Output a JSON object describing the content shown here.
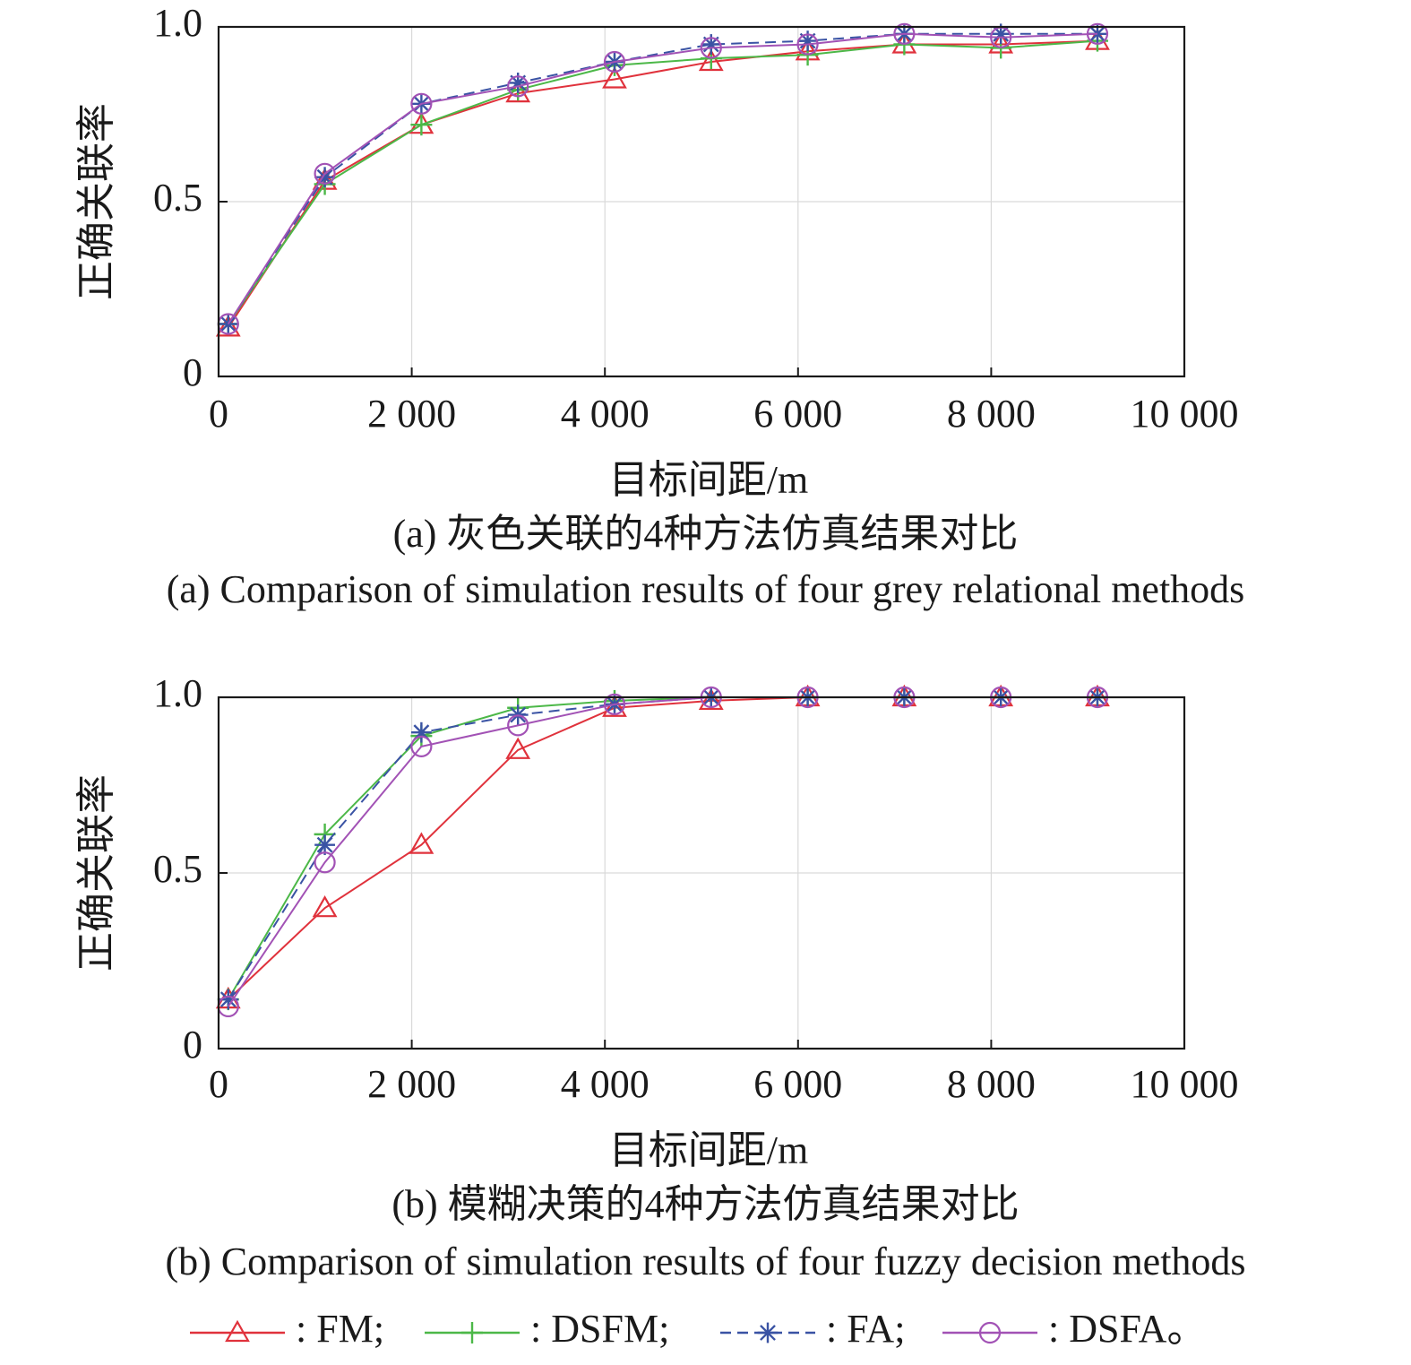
{
  "chart_data": [
    {
      "type": "line",
      "panel": "a",
      "ylabel": "正确关联率",
      "xlabel": "目标间距/m",
      "caption_cn": "(a) 灰色关联的4种方法仿真结果对比",
      "caption_en": "(a) Comparison of simulation results of four grey relational methods",
      "xlim": [
        0,
        10000
      ],
      "ylim": [
        0,
        1.0
      ],
      "xticks": [
        0,
        2000,
        4000,
        6000,
        8000,
        10000
      ],
      "xtick_labels": [
        "0",
        "2 000",
        "4 000",
        "6 000",
        "8 000",
        "10 000"
      ],
      "yticks": [
        0,
        0.5,
        1.0
      ],
      "ytick_labels": [
        "0",
        "0.5",
        "1.0"
      ],
      "grid": true,
      "x": [
        100,
        1100,
        2100,
        3100,
        4100,
        5100,
        6100,
        7100,
        8100,
        9100
      ],
      "series": [
        {
          "key": "FM",
          "values": [
            0.14,
            0.56,
            0.72,
            0.81,
            0.85,
            0.9,
            0.93,
            0.95,
            0.95,
            0.96
          ]
        },
        {
          "key": "DSFM",
          "values": [
            0.15,
            0.55,
            0.72,
            0.82,
            0.89,
            0.91,
            0.92,
            0.95,
            0.94,
            0.96
          ]
        },
        {
          "key": "FA",
          "values": [
            0.15,
            0.57,
            0.78,
            0.84,
            0.9,
            0.95,
            0.96,
            0.98,
            0.98,
            0.98
          ]
        },
        {
          "key": "DSFA",
          "values": [
            0.15,
            0.58,
            0.78,
            0.83,
            0.9,
            0.94,
            0.95,
            0.98,
            0.97,
            0.98
          ]
        }
      ]
    },
    {
      "type": "line",
      "panel": "b",
      "ylabel": "正确关联率",
      "xlabel": "目标间距/m",
      "caption_cn": "(b) 模糊决策的4种方法仿真结果对比",
      "caption_en": "(b) Comparison of simulation results of four fuzzy decision methods",
      "xlim": [
        0,
        10000
      ],
      "ylim": [
        0,
        1.0
      ],
      "xticks": [
        0,
        2000,
        4000,
        6000,
        8000,
        10000
      ],
      "xtick_labels": [
        "0",
        "2 000",
        "4 000",
        "6 000",
        "8 000",
        "10 000"
      ],
      "yticks": [
        0,
        0.5,
        1.0
      ],
      "ytick_labels": [
        "0",
        "0.5",
        "1.0"
      ],
      "grid": true,
      "x": [
        100,
        1100,
        2100,
        3100,
        4100,
        5100,
        6100,
        7100,
        8100,
        9100
      ],
      "series": [
        {
          "key": "FM",
          "values": [
            0.14,
            0.4,
            0.58,
            0.85,
            0.97,
            0.99,
            1.0,
            1.0,
            1.0,
            1.0
          ]
        },
        {
          "key": "DSFM",
          "values": [
            0.14,
            0.61,
            0.89,
            0.97,
            0.99,
            1.0,
            1.0,
            1.0,
            1.0,
            1.0
          ]
        },
        {
          "key": "FA",
          "values": [
            0.14,
            0.58,
            0.9,
            0.95,
            0.98,
            1.0,
            1.0,
            1.0,
            1.0,
            1.0
          ]
        },
        {
          "key": "DSFA",
          "values": [
            0.12,
            0.53,
            0.86,
            0.92,
            0.98,
            1.0,
            1.0,
            1.0,
            1.0,
            1.0
          ]
        }
      ]
    }
  ],
  "legend": [
    {
      "key": "FM",
      "label": ": FM;",
      "color": "#e0323c",
      "marker": "triangle",
      "dash": false
    },
    {
      "key": "DSFM",
      "label": ": DSFM;",
      "color": "#4cb848",
      "marker": "plus",
      "dash": false
    },
    {
      "key": "FA",
      "label": ": FA;",
      "color": "#3a53a4",
      "marker": "asterisk",
      "dash": true
    },
    {
      "key": "DSFA",
      "label": ": DSFA。",
      "color": "#a252b5",
      "marker": "circle",
      "dash": false
    }
  ]
}
